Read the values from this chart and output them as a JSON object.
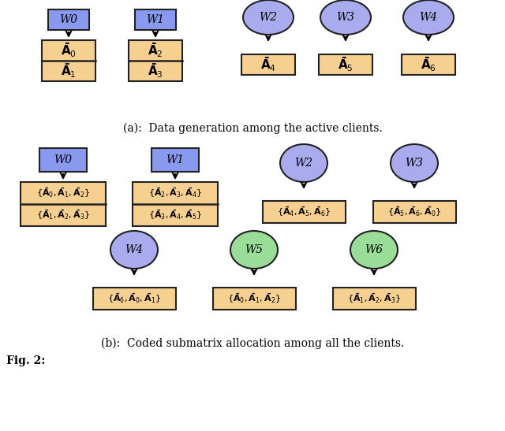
{
  "fig_width": 6.4,
  "fig_height": 5.47,
  "dpi": 100,
  "bg_color": "#ffffff",
  "sq_color": "#8899ee",
  "ci_color_a": "#aaaaee",
  "ci_color_b": "#aaaaee",
  "gr_color": "#99dd99",
  "box_color": "#f5d090",
  "edge_color": "#222222",
  "caption_a": "(a):  Data generation among the active clients.",
  "caption_b": "(b):  Coded submatrix allocation among all the clients.",
  "fig_label": "Fig. 2:"
}
